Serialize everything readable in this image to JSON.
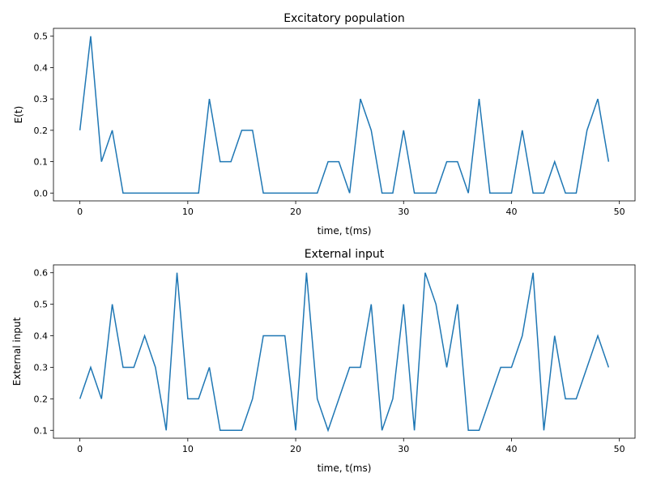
{
  "chart_data": [
    {
      "type": "line",
      "title": "Excitatory population",
      "xlabel": "time, t(ms)",
      "ylabel": "E(t)",
      "xlim": [
        -2.45,
        51.45
      ],
      "ylim": [
        -0.025,
        0.525
      ],
      "xticks": [
        0,
        10,
        20,
        30,
        40,
        50
      ],
      "xtick_labels": [
        "0",
        "10",
        "20",
        "30",
        "40",
        "50"
      ],
      "yticks": [
        0.0,
        0.1,
        0.2,
        0.3,
        0.4,
        0.5
      ],
      "ytick_labels": [
        "0.0",
        "0.1",
        "0.2",
        "0.3",
        "0.4",
        "0.5"
      ],
      "grid": false,
      "color": "#1f77b4",
      "x": [
        0,
        1,
        2,
        3,
        4,
        5,
        6,
        7,
        8,
        9,
        10,
        11,
        12,
        13,
        14,
        15,
        16,
        17,
        18,
        19,
        20,
        21,
        22,
        23,
        24,
        25,
        26,
        27,
        28,
        29,
        30,
        31,
        32,
        33,
        34,
        35,
        36,
        37,
        38,
        39,
        40,
        41,
        42,
        43,
        44,
        45,
        46,
        47,
        48,
        49
      ],
      "values": [
        0.2,
        0.5,
        0.1,
        0.2,
        0,
        0,
        0,
        0,
        0,
        0,
        0,
        0,
        0.3,
        0.1,
        0.1,
        0.2,
        0.2,
        0,
        0,
        0,
        0,
        0,
        0,
        0.1,
        0.1,
        0,
        0.3,
        0.2,
        0,
        0,
        0.2,
        0,
        0,
        0,
        0.1,
        0.1,
        0,
        0.3,
        0,
        0,
        0,
        0.2,
        0,
        0,
        0.1,
        0,
        0,
        0.2,
        0.3,
        0.1
      ]
    },
    {
      "type": "line",
      "title": "External input",
      "xlabel": "time, t(ms)",
      "ylabel": "External input",
      "xlim": [
        -2.45,
        51.45
      ],
      "ylim": [
        0.075,
        0.625
      ],
      "xticks": [
        0,
        10,
        20,
        30,
        40,
        50
      ],
      "xtick_labels": [
        "0",
        "10",
        "20",
        "30",
        "40",
        "50"
      ],
      "yticks": [
        0.1,
        0.2,
        0.3,
        0.4,
        0.5,
        0.6
      ],
      "ytick_labels": [
        "0.1",
        "0.2",
        "0.3",
        "0.4",
        "0.5",
        "0.6"
      ],
      "grid": false,
      "color": "#1f77b4",
      "x": [
        0,
        1,
        2,
        3,
        4,
        5,
        6,
        7,
        8,
        9,
        10,
        11,
        12,
        13,
        14,
        15,
        16,
        17,
        18,
        19,
        20,
        21,
        22,
        23,
        24,
        25,
        26,
        27,
        28,
        29,
        30,
        31,
        32,
        33,
        34,
        35,
        36,
        37,
        38,
        39,
        40,
        41,
        42,
        43,
        44,
        45,
        46,
        47,
        48,
        49
      ],
      "values": [
        0.2,
        0.3,
        0.2,
        0.5,
        0.3,
        0.3,
        0.4,
        0.3,
        0.1,
        0.6,
        0.2,
        0.2,
        0.3,
        0.1,
        0.1,
        0.1,
        0.2,
        0.4,
        0.4,
        0.4,
        0.1,
        0.6,
        0.2,
        0.1,
        0.2,
        0.3,
        0.3,
        0.5,
        0.1,
        0.2,
        0.5,
        0.1,
        0.6,
        0.5,
        0.3,
        0.5,
        0.1,
        0.1,
        0.2,
        0.3,
        0.3,
        0.4,
        0.6,
        0.1,
        0.4,
        0.2,
        0.2,
        0.3,
        0.4,
        0.3
      ]
    }
  ]
}
